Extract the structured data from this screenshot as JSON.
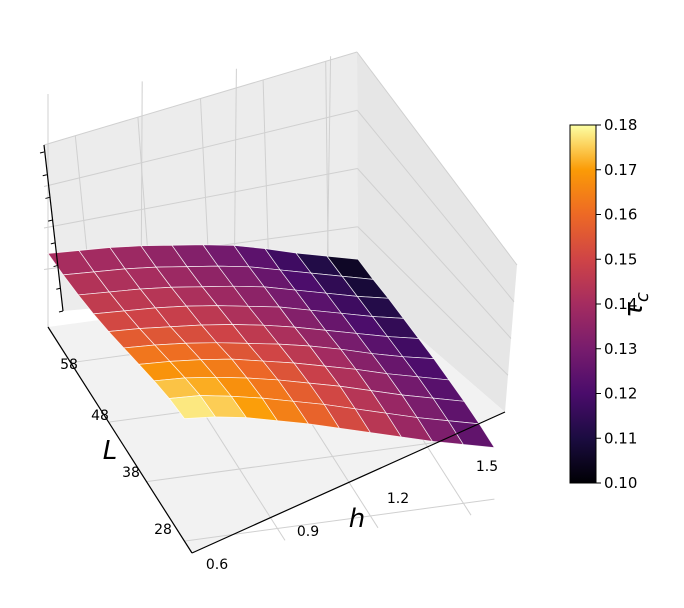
{
  "chart_data": {
    "type": "surface3d",
    "colormap": "inferno",
    "x": {
      "label": "h",
      "ticks": [
        "0.6",
        "0.9",
        "1.2",
        "1.5"
      ],
      "range": [
        0.6,
        1.6
      ]
    },
    "y": {
      "label": "L",
      "ticks": [
        "28",
        "38",
        "48",
        "58"
      ],
      "range": [
        26,
        64
      ]
    },
    "colorbar": {
      "label": "τ_c",
      "range": [
        0.1,
        0.18
      ],
      "ticks": [
        "0.10",
        "0.11",
        "0.12",
        "0.13",
        "0.14",
        "0.15",
        "0.16",
        "0.17",
        "0.18"
      ]
    },
    "h_grid": [
      0.6,
      0.7,
      0.8,
      0.9,
      1.0,
      1.1,
      1.2,
      1.3,
      1.4,
      1.5,
      1.6
    ],
    "L_grid": [
      64,
      60,
      56,
      52,
      48,
      44,
      40,
      36,
      32,
      28
    ],
    "tau": [
      [
        0.14,
        0.139,
        0.138,
        0.136,
        0.133,
        0.13,
        0.126,
        0.12,
        0.113,
        0.107,
        0.101
      ],
      [
        0.142,
        0.141,
        0.14,
        0.138,
        0.135,
        0.132,
        0.128,
        0.122,
        0.116,
        0.11,
        0.104
      ],
      [
        0.145,
        0.144,
        0.143,
        0.141,
        0.138,
        0.135,
        0.131,
        0.125,
        0.119,
        0.113,
        0.108
      ],
      [
        0.149,
        0.148,
        0.147,
        0.145,
        0.142,
        0.138,
        0.134,
        0.128,
        0.122,
        0.116,
        0.111
      ],
      [
        0.154,
        0.153,
        0.151,
        0.149,
        0.146,
        0.142,
        0.137,
        0.131,
        0.125,
        0.119,
        0.114
      ],
      [
        0.16,
        0.159,
        0.157,
        0.154,
        0.15,
        0.146,
        0.141,
        0.135,
        0.128,
        0.122,
        0.117
      ],
      [
        0.166,
        0.165,
        0.163,
        0.16,
        0.155,
        0.15,
        0.144,
        0.138,
        0.131,
        0.125,
        0.119
      ],
      [
        0.172,
        0.171,
        0.168,
        0.164,
        0.159,
        0.153,
        0.147,
        0.14,
        0.133,
        0.127,
        0.121
      ],
      [
        0.177,
        0.176,
        0.172,
        0.167,
        0.161,
        0.155,
        0.148,
        0.141,
        0.134,
        0.128,
        0.122
      ],
      [
        0.18,
        0.178,
        0.174,
        0.168,
        0.162,
        0.155,
        0.148,
        0.141,
        0.134,
        0.128,
        0.122
      ]
    ]
  }
}
